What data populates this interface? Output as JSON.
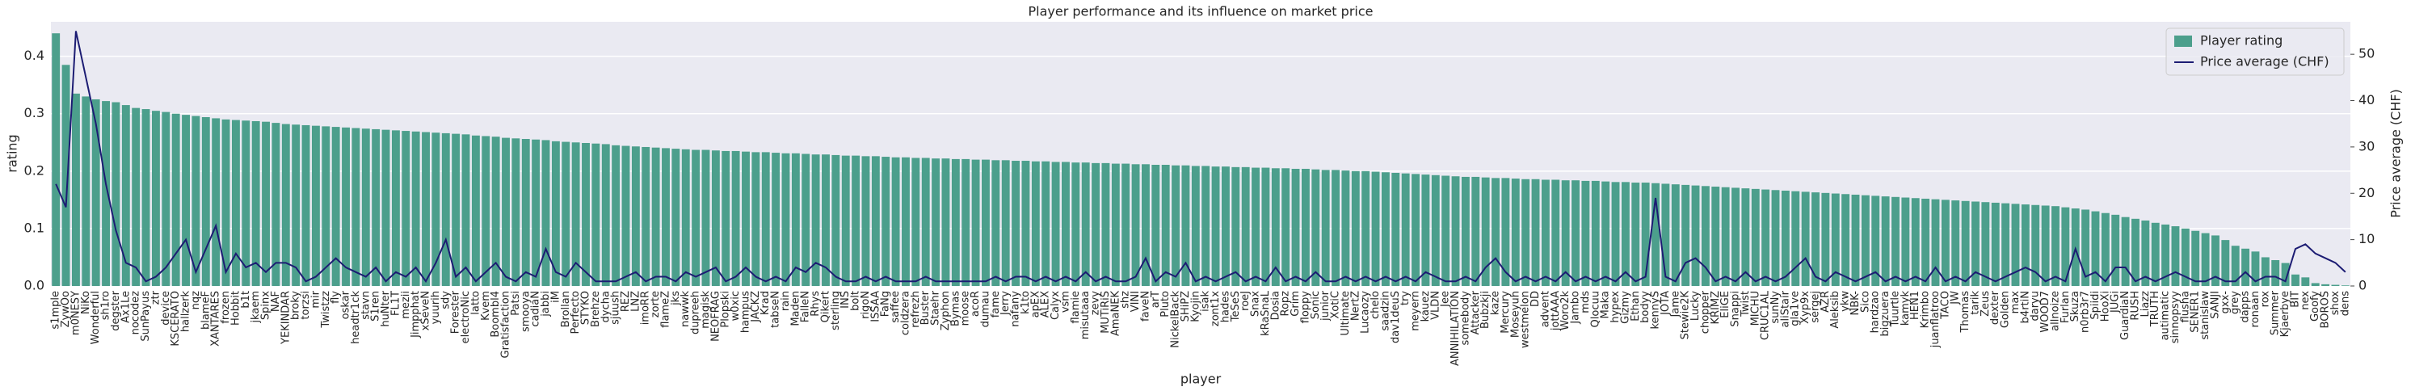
{
  "chart_data": {
    "type": "bar",
    "title": "Player performance and its influence on market price",
    "xlabel": "player",
    "ylabel": "rating",
    "y2label": "Price average (CHF)",
    "categories": [
      "s1mple",
      "ZywOo",
      "m0NESY",
      "NiKo",
      "Wonderful",
      "sh1ro",
      "degster",
      "Ax1Le",
      "nocodez",
      "SunPayus",
      "ztr",
      "device",
      "KSCERATO",
      "hallzerk",
      "nqz",
      "blameF",
      "XANTARES",
      "frozen",
      "Hobbit",
      "b1t",
      "jkaem",
      "Spinx",
      "NAF",
      "YEKINDAR",
      "broky",
      "torzsi",
      "mir",
      "Twistzz",
      "fly",
      "oskar",
      "headtr1ck",
      "stavn",
      "S1ren",
      "huNter",
      "FL1T",
      "mezii",
      "Jimpphat",
      "xSeveN",
      "yuurih",
      "sdy",
      "Forester",
      "electroNic",
      "latto",
      "Kvem",
      "Boombl4",
      "Gratisfaction",
      "Patsi",
      "smooya",
      "cadiaN",
      "jabbi",
      "iM",
      "Brollan",
      "Perfecto",
      "STYKO",
      "Brehze",
      "dycha",
      "sjuush",
      "REZ",
      "LNZ",
      "imoRR",
      "zorte",
      "flameZ",
      "jks",
      "nawwk",
      "dupreeh",
      "magisk",
      "NEOFRAG",
      "Plopski",
      "w0xic",
      "hampus",
      "JACKZ",
      "Krad",
      "tabseN",
      "rain",
      "Maden",
      "FalleN",
      "Rhys",
      "Qikert",
      "sterling",
      "INS",
      "bolt",
      "rigoN",
      "ISSAA",
      "FaNg",
      "saffee",
      "coldzera",
      "refrezh",
      "Buster",
      "Staehr",
      "Zyphon",
      "Bymas",
      "moose",
      "acoR",
      "dumau",
      "fame",
      "Jerry",
      "nafany",
      "k1to",
      "apEX",
      "ALEX",
      "Calyx",
      "vsm",
      "flamie",
      "misutaaa",
      "zevy",
      "MUTiRiS",
      "AmaNEK",
      "shz",
      "VINI",
      "faveN",
      "arT",
      "Pluto",
      "NickelBack",
      "SHiPZ",
      "Kyojin",
      "isak",
      "zont1x",
      "hades",
      "TeSeS",
      "roeJ",
      "Snax",
      "kRaSnaL",
      "Dosia",
      "Ropz",
      "Grim",
      "floppy",
      "Sonic",
      "junior",
      "XotiC",
      "Ultimate",
      "NertZ",
      "Lucaozy",
      "chelo",
      "saadzin",
      "dav1deuS",
      "try",
      "meyern",
      "kauez",
      "VLDN",
      "Jee",
      "ANNIHILATION",
      "somebody",
      "Attacker",
      "Bubzkji",
      "kaze",
      "Mercury",
      "Moseyuh",
      "westmelon",
      "DD",
      "advent",
      "jottAAA",
      "Woro2k",
      "Jambo",
      "mds",
      "Qlocuu",
      "Maka",
      "hypex",
      "Gizmy",
      "Ethan",
      "bodyy",
      "kennyS",
      "JOTA",
      "Jame",
      "Stewie2K",
      "Lucky",
      "chopper",
      "KRIMZ",
      "EliGE",
      "Snappi",
      "Twist",
      "MICHU",
      "CRUC1AL",
      "sunNy",
      "aliStair",
      "gla1ve",
      "Xyp9x",
      "sergej",
      "AZR",
      "Aleksib",
      "ykw",
      "NBK-",
      "Sico",
      "hardzao",
      "bigzuera",
      "Tuurtle",
      "kamyk",
      "HEN1",
      "Krimbo",
      "juanflatroo",
      "TACO",
      "JW",
      "Thomas",
      "tarik",
      "Zeus",
      "dexter",
      "Golden",
      "max",
      "b4rtiN",
      "daryu",
      "WOOD7",
      "allnoize",
      "Furlan",
      "Skuza",
      "n0rb3r7",
      "Spiidi",
      "HooXi",
      "JUGi",
      "GuardiaN",
      "RUSH",
      "Liazz",
      "TRUTH",
      "autimatic",
      "sinnopsyy",
      "flusha",
      "SENER1",
      "stanislaw",
      "SANJI",
      "gxx-",
      "grey",
      "dapps",
      "ronaan",
      "rox",
      "Summer",
      "Kjaerbye",
      "BIT",
      "nex",
      "Goofy",
      "BOROS",
      "shox",
      "dens"
    ],
    "series": [
      {
        "name": "Player rating",
        "type": "bar",
        "color": "#4c9f8c",
        "values": [
          0.44,
          0.385,
          0.335,
          0.33,
          0.325,
          0.322,
          0.32,
          0.315,
          0.31,
          0.308,
          0.305,
          0.303,
          0.3,
          0.298,
          0.296,
          0.294,
          0.292,
          0.29,
          0.289,
          0.288,
          0.287,
          0.286,
          0.284,
          0.282,
          0.281,
          0.28,
          0.279,
          0.278,
          0.277,
          0.276,
          0.275,
          0.274,
          0.273,
          0.272,
          0.271,
          0.27,
          0.269,
          0.268,
          0.267,
          0.266,
          0.265,
          0.264,
          0.262,
          0.261,
          0.26,
          0.258,
          0.257,
          0.256,
          0.255,
          0.254,
          0.252,
          0.251,
          0.25,
          0.249,
          0.248,
          0.247,
          0.245,
          0.244,
          0.243,
          0.242,
          0.241,
          0.24,
          0.239,
          0.238,
          0.237,
          0.237,
          0.236,
          0.235,
          0.235,
          0.234,
          0.233,
          0.233,
          0.232,
          0.231,
          0.231,
          0.23,
          0.229,
          0.229,
          0.228,
          0.227,
          0.227,
          0.226,
          0.226,
          0.225,
          0.224,
          0.224,
          0.223,
          0.223,
          0.222,
          0.222,
          0.221,
          0.221,
          0.22,
          0.22,
          0.219,
          0.219,
          0.218,
          0.218,
          0.217,
          0.217,
          0.216,
          0.216,
          0.215,
          0.215,
          0.214,
          0.214,
          0.213,
          0.213,
          0.212,
          0.212,
          0.211,
          0.211,
          0.21,
          0.21,
          0.209,
          0.209,
          0.208,
          0.208,
          0.207,
          0.207,
          0.206,
          0.206,
          0.205,
          0.205,
          0.204,
          0.204,
          0.203,
          0.202,
          0.202,
          0.201,
          0.2,
          0.2,
          0.199,
          0.198,
          0.197,
          0.196,
          0.195,
          0.194,
          0.193,
          0.192,
          0.191,
          0.19,
          0.19,
          0.189,
          0.188,
          0.188,
          0.187,
          0.186,
          0.186,
          0.185,
          0.185,
          0.184,
          0.184,
          0.183,
          0.183,
          0.182,
          0.181,
          0.181,
          0.18,
          0.18,
          0.179,
          0.178,
          0.177,
          0.176,
          0.175,
          0.174,
          0.173,
          0.172,
          0.171,
          0.17,
          0.169,
          0.168,
          0.167,
          0.166,
          0.165,
          0.164,
          0.163,
          0.162,
          0.161,
          0.16,
          0.159,
          0.158,
          0.157,
          0.156,
          0.155,
          0.154,
          0.153,
          0.152,
          0.151,
          0.15,
          0.149,
          0.148,
          0.147,
          0.146,
          0.145,
          0.144,
          0.143,
          0.142,
          0.141,
          0.14,
          0.139,
          0.137,
          0.135,
          0.133,
          0.13,
          0.127,
          0.124,
          0.12,
          0.117,
          0.114,
          0.11,
          0.107,
          0.104,
          0.1,
          0.096,
          0.092,
          0.088,
          0.08,
          0.07,
          0.065,
          0.06,
          0.05,
          0.045,
          0.04,
          0.02,
          0.015,
          0.005,
          0.003,
          0.002,
          0.001
        ]
      },
      {
        "name": "Price average (CHF)",
        "type": "line",
        "axis": "y2",
        "color": "#1c1c73",
        "values": [
          22,
          17,
          55,
          45,
          35,
          22,
          12,
          5,
          4,
          1,
          2,
          4,
          7,
          10,
          3,
          8,
          13,
          3,
          7,
          4,
          5,
          3,
          5,
          5,
          4,
          1,
          2,
          4,
          6,
          4,
          3,
          2,
          4,
          1,
          3,
          2,
          4,
          1,
          5,
          10,
          2,
          4,
          1,
          3,
          5,
          2,
          1,
          3,
          2,
          8,
          3,
          2,
          5,
          3,
          1,
          1,
          1,
          2,
          3,
          1,
          2,
          2,
          1,
          3,
          2,
          3,
          4,
          1,
          2,
          4,
          2,
          1,
          2,
          1,
          4,
          3,
          5,
          4,
          2,
          1,
          1,
          2,
          1,
          2,
          1,
          1,
          1,
          2,
          1,
          1,
          1,
          1,
          1,
          1,
          2,
          1,
          2,
          2,
          1,
          2,
          1,
          2,
          1,
          3,
          1,
          2,
          1,
          1,
          2,
          6,
          1,
          3,
          2,
          5,
          1,
          2,
          1,
          2,
          3,
          1,
          2,
          1,
          4,
          1,
          2,
          1,
          3,
          1,
          1,
          2,
          1,
          2,
          1,
          2,
          1,
          2,
          1,
          3,
          2,
          1,
          1,
          2,
          1,
          4,
          6,
          3,
          1,
          2,
          1,
          2,
          1,
          3,
          1,
          2,
          1,
          2,
          1,
          3,
          1,
          2,
          19,
          2,
          1,
          5,
          6,
          4,
          1,
          2,
          1,
          3,
          1,
          2,
          1,
          2,
          4,
          6,
          2,
          1,
          3,
          2,
          1,
          2,
          3,
          1,
          2,
          1,
          2,
          1,
          4,
          1,
          2,
          1,
          3,
          2,
          1,
          2,
          3,
          4,
          3,
          1,
          2,
          1,
          8,
          2,
          3,
          1,
          4,
          4,
          1,
          2,
          1,
          2,
          3,
          2,
          1,
          1,
          2,
          1,
          1,
          3,
          1,
          2,
          2,
          1,
          8,
          9,
          7,
          6,
          5,
          3
        ]
      }
    ],
    "ylim": [
      0,
      0.46
    ],
    "yticks": [
      {
        "value": 0,
        "label": "0.0"
      },
      0.1,
      0.2,
      0.3,
      0.4
    ],
    "y2lim": [
      0,
      57
    ],
    "y2ticks": [
      0,
      10,
      20,
      30,
      40,
      50
    ],
    "grid": true,
    "legend": "upper right"
  }
}
